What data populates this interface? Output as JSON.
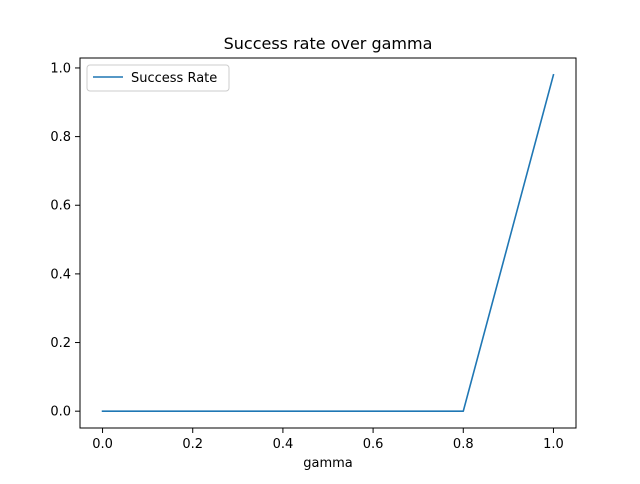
{
  "chart_data": {
    "type": "line",
    "title": "Success rate over gamma",
    "xlabel": "gamma",
    "ylabel": "",
    "xlim": [
      -0.05,
      1.05
    ],
    "ylim": [
      -0.049,
      1.029
    ],
    "xticks": [
      0.0,
      0.2,
      0.4,
      0.6,
      0.8,
      1.0
    ],
    "xtick_labels": [
      "0.0",
      "0.2",
      "0.4",
      "0.6",
      "0.8",
      "1.0"
    ],
    "yticks": [
      0.0,
      0.2,
      0.4,
      0.6,
      0.8,
      1.0
    ],
    "ytick_labels": [
      "0.0",
      "0.2",
      "0.4",
      "0.6",
      "0.8",
      "1.0"
    ],
    "grid": false,
    "legend_position": "upper-left",
    "series": [
      {
        "name": "Success Rate",
        "color": "#1f77b4",
        "x": [
          0.0,
          0.1,
          0.2,
          0.3,
          0.4,
          0.5,
          0.6,
          0.7,
          0.8,
          1.0
        ],
        "y": [
          0.0,
          0.0,
          0.0,
          0.0,
          0.0,
          0.0,
          0.0,
          0.0,
          0.0,
          0.98
        ]
      }
    ]
  }
}
